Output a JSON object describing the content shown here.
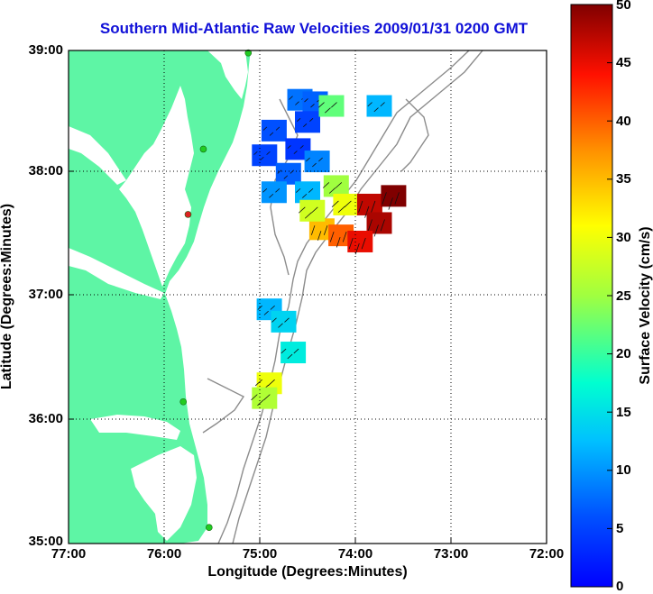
{
  "title": "Southern Mid-Atlantic Raw Velocities 2009/01/31 0200 GMT",
  "x_axis": {
    "label": "Longitude (Degrees:Minutes)",
    "ticks": [
      "77:00",
      "76:00",
      "75:00",
      "74:00",
      "73:00",
      "72:00"
    ]
  },
  "y_axis": {
    "label": "Latitude (Degrees:Minutes)",
    "ticks": [
      "39:00",
      "38:00",
      "37:00",
      "36:00",
      "35:00"
    ]
  },
  "colorbar": {
    "label": "Surface Velocity (cm/s)",
    "ticks": [
      "50",
      "45",
      "40",
      "35",
      "30",
      "25",
      "20",
      "15",
      "10",
      "5",
      "0"
    ],
    "min": 0,
    "max": 50
  },
  "colors": {
    "land": "#5ef5a5",
    "title": "#1010d8",
    "bathymetry": "#8c8c8c",
    "station": "#22cc22",
    "station_alt": "#dd2222"
  },
  "stations": [
    {
      "lon": -75.12,
      "lat": 38.98,
      "color": "#22cc22"
    },
    {
      "lon": -75.59,
      "lat": 38.2,
      "color": "#22cc22"
    },
    {
      "lon": -75.75,
      "lat": 37.67,
      "color": "#dd2222"
    },
    {
      "lon": -75.8,
      "lat": 36.15,
      "color": "#22cc22"
    },
    {
      "lon": -75.53,
      "lat": 35.13,
      "color": "#22cc22"
    }
  ],
  "velocity_field": [
    {
      "lon": -74.58,
      "lat": 38.6,
      "speed": 8
    },
    {
      "lon": -74.42,
      "lat": 38.58,
      "speed": 7
    },
    {
      "lon": -74.5,
      "lat": 38.42,
      "speed": 5
    },
    {
      "lon": -74.25,
      "lat": 38.55,
      "speed": 22
    },
    {
      "lon": -73.75,
      "lat": 38.55,
      "speed": 12
    },
    {
      "lon": -74.85,
      "lat": 38.35,
      "speed": 6
    },
    {
      "lon": -74.6,
      "lat": 38.2,
      "speed": 4
    },
    {
      "lon": -74.95,
      "lat": 38.15,
      "speed": 5
    },
    {
      "lon": -74.7,
      "lat": 38.0,
      "speed": 7
    },
    {
      "lon": -74.4,
      "lat": 38.1,
      "speed": 9
    },
    {
      "lon": -74.85,
      "lat": 37.85,
      "speed": 10
    },
    {
      "lon": -74.5,
      "lat": 37.85,
      "speed": 12
    },
    {
      "lon": -74.2,
      "lat": 37.9,
      "speed": 25
    },
    {
      "lon": -74.1,
      "lat": 37.75,
      "speed": 30
    },
    {
      "lon": -73.85,
      "lat": 37.75,
      "speed": 47
    },
    {
      "lon": -73.6,
      "lat": 37.82,
      "speed": 50
    },
    {
      "lon": -73.75,
      "lat": 37.6,
      "speed": 48
    },
    {
      "lon": -74.35,
      "lat": 37.55,
      "speed": 35
    },
    {
      "lon": -74.15,
      "lat": 37.5,
      "speed": 40
    },
    {
      "lon": -73.95,
      "lat": 37.45,
      "speed": 45
    },
    {
      "lon": -74.45,
      "lat": 37.7,
      "speed": 28
    },
    {
      "lon": -74.9,
      "lat": 36.9,
      "speed": 12
    },
    {
      "lon": -74.75,
      "lat": 36.8,
      "speed": 14
    },
    {
      "lon": -74.65,
      "lat": 36.55,
      "speed": 16
    },
    {
      "lon": -74.9,
      "lat": 36.3,
      "speed": 30
    },
    {
      "lon": -74.95,
      "lat": 36.18,
      "speed": 26
    }
  ]
}
